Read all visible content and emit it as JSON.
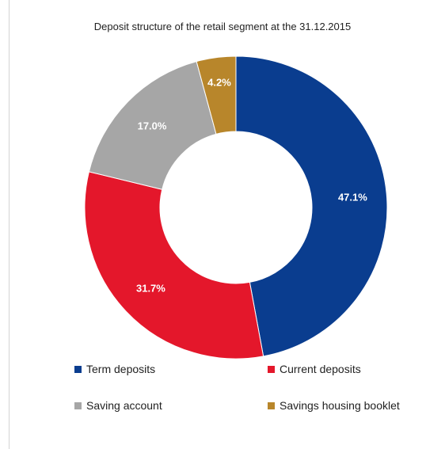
{
  "chart_data": {
    "type": "pie",
    "title": "Deposit structure of the retail segment at the 31.12.2015",
    "donut": true,
    "categories": [
      "Term deposits",
      "Current deposits",
      "Saving account",
      "Savings housing booklet"
    ],
    "values": [
      47.1,
      31.7,
      17.0,
      4.2
    ],
    "labels": [
      "47.1%",
      "31.7%",
      "17.0%",
      "4.2%"
    ],
    "colors": [
      "#0a3d8f",
      "#e4172b",
      "#a6a6a6",
      "#b8862b"
    ],
    "legend_position": "bottom"
  }
}
